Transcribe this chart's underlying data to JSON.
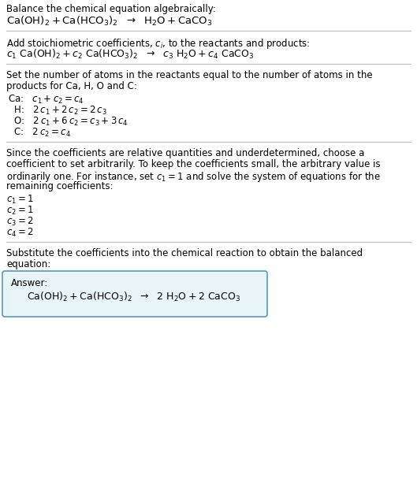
{
  "bg_color": "#ffffff",
  "text_color": "#000000",
  "box_bg_color": "#e8f4f8",
  "box_border_color": "#5599bb",
  "separator_color": "#aaaaaa",
  "title": "Balance the chemical equation algebraically:",
  "section2_header": "Add stoichiometric coefficients, $c_i$, to the reactants and products:",
  "section3_header_line1": "Set the number of atoms in the reactants equal to the number of atoms in the",
  "section3_header_line2": "products for Ca, H, O and C:",
  "section4_header_line1": "Since the coefficients are relative quantities and underdetermined, choose a",
  "section4_header_line2": "coefficient to set arbitrarily. To keep the coefficients small, the arbitrary value is",
  "section4_header_line3": "ordinarily one. For instance, set $c_1 = 1$ and solve the system of equations for the",
  "section4_header_line4": "remaining coefficients:",
  "section5_header_line1": "Substitute the coefficients into the chemical reaction to obtain the balanced",
  "section5_header_line2": "equation:",
  "answer_label": "Answer:",
  "fontsize": 8.5,
  "fig_width": 5.29,
  "fig_height": 6.27
}
